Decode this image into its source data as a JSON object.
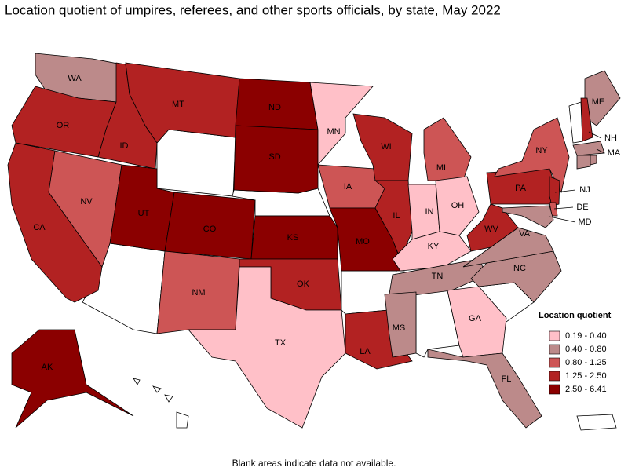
{
  "title": "Location quotient of umpires, referees, and other sports officials, by state, May 2022",
  "footnote": "Blank areas indicate data not available.",
  "legend": {
    "title": "Location quotient",
    "position": "right",
    "items": [
      {
        "label": "0.19 - 0.40",
        "color": "#ffc0c8"
      },
      {
        "label": "0.40 - 0.80",
        "color": "#bc8a8a"
      },
      {
        "label": "0.80 - 1.25",
        "color": "#cd5555"
      },
      {
        "label": "1.25 - 2.50",
        "color": "#b22222"
      },
      {
        "label": "2.50 - 6.41",
        "color": "#8b0000"
      }
    ]
  },
  "states": [
    {
      "label": "WA",
      "class": 1
    },
    {
      "label": "OR",
      "class": 3
    },
    {
      "label": "CA",
      "class": 3
    },
    {
      "label": "NV",
      "class": 2
    },
    {
      "label": "ID",
      "class": 3
    },
    {
      "label": "MT",
      "class": 3
    },
    {
      "label": "UT",
      "class": 4
    },
    {
      "label": "CO",
      "class": 4
    },
    {
      "label": "NM",
      "class": 2
    },
    {
      "label": "ND",
      "class": 4
    },
    {
      "label": "SD",
      "class": 4
    },
    {
      "label": "KS",
      "class": 4
    },
    {
      "label": "OK",
      "class": 3
    },
    {
      "label": "TX",
      "class": 0
    },
    {
      "label": "MN",
      "class": 0
    },
    {
      "label": "IA",
      "class": 2
    },
    {
      "label": "MO",
      "class": 4
    },
    {
      "label": "LA",
      "class": 3
    },
    {
      "label": "WI",
      "class": 3
    },
    {
      "label": "IL",
      "class": 3
    },
    {
      "label": "MI",
      "class": 2
    },
    {
      "label": "IN",
      "class": 0
    },
    {
      "label": "OH",
      "class": 0
    },
    {
      "label": "KY",
      "class": 0
    },
    {
      "label": "TN",
      "class": 1
    },
    {
      "label": "MS",
      "class": 1
    },
    {
      "label": "GA",
      "class": 0
    },
    {
      "label": "FL",
      "class": 1
    },
    {
      "label": "NC",
      "class": 1
    },
    {
      "label": "VA",
      "class": 1
    },
    {
      "label": "WV",
      "class": 3
    },
    {
      "label": "PA",
      "class": 3
    },
    {
      "label": "NY",
      "class": 2
    },
    {
      "label": "NJ",
      "class": 3
    },
    {
      "label": "DE",
      "class": 2
    },
    {
      "label": "MD",
      "class": 1
    },
    {
      "label": "ME",
      "class": 1
    },
    {
      "label": "NH",
      "class": 3
    },
    {
      "label": "MA",
      "class": 1
    },
    {
      "label": null,
      "class": 1
    },
    {
      "label": null,
      "class": 1
    },
    {
      "label": "AK",
      "class": 4
    }
  ]
}
